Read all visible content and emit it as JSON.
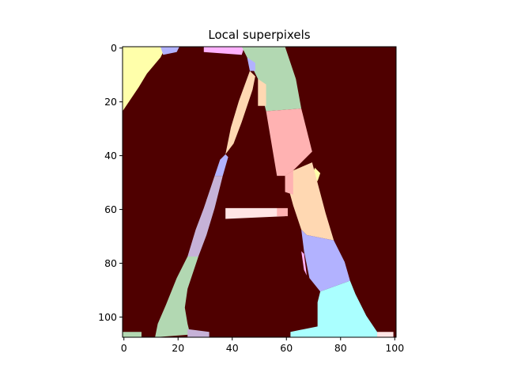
{
  "chart_data": {
    "type": "heatmap",
    "title": "Local superpixels",
    "xlabel": "",
    "ylabel": "",
    "xlim": [
      0,
      101
    ],
    "ylim": [
      108,
      0
    ],
    "x_ticks": [
      0,
      20,
      40,
      60,
      80,
      100
    ],
    "y_ticks": [
      0,
      20,
      40,
      60,
      80,
      100
    ],
    "image_size": {
      "cols": 101,
      "rows": 108
    },
    "grid": false,
    "background_color": "#4f0000",
    "segments": [
      {
        "color": "#ffffaa",
        "polygon": [
          [
            0,
            0
          ],
          [
            16,
            0
          ],
          [
            14,
            4
          ],
          [
            9,
            10
          ],
          [
            6,
            15
          ],
          [
            0,
            24
          ]
        ]
      },
      {
        "color": "#b2b2ff",
        "polygon": [
          [
            14,
            0
          ],
          [
            21,
            0
          ],
          [
            20,
            2
          ],
          [
            15,
            3
          ]
        ]
      },
      {
        "color": "#ffb2ff",
        "polygon": [
          [
            30,
            0
          ],
          [
            45,
            0
          ],
          [
            44,
            3
          ],
          [
            30,
            2
          ]
        ]
      },
      {
        "color": "#b2d8b2",
        "polygon": [
          [
            44,
            0
          ],
          [
            60,
            0
          ],
          [
            64,
            12
          ],
          [
            66,
            23
          ],
          [
            53,
            24
          ],
          [
            50,
            12
          ],
          [
            46,
            4
          ]
        ]
      },
      {
        "color": "#b2b2ff",
        "polygon": [
          [
            46,
            4
          ],
          [
            49,
            6
          ],
          [
            49,
            9
          ],
          [
            47,
            9
          ]
        ]
      },
      {
        "color": "#ffd8b2",
        "polygon": [
          [
            47,
            9
          ],
          [
            49,
            11
          ],
          [
            48,
            16
          ],
          [
            44,
            28
          ],
          [
            41,
            36
          ],
          [
            38,
            40
          ],
          [
            40,
            30
          ],
          [
            43,
            20
          ]
        ]
      },
      {
        "color": "#ffd8b2",
        "polygon": [
          [
            50,
            12
          ],
          [
            53,
            14
          ],
          [
            53,
            22
          ],
          [
            50,
            22
          ]
        ]
      },
      {
        "color": "#ffb2b2",
        "polygon": [
          [
            53,
            24
          ],
          [
            66,
            23
          ],
          [
            70,
            39
          ],
          [
            63,
            46
          ],
          [
            60,
            48
          ],
          [
            57,
            48
          ]
        ]
      },
      {
        "color": "#b2b2ff",
        "polygon": [
          [
            38,
            40
          ],
          [
            39,
            41
          ],
          [
            37,
            48
          ],
          [
            34,
            48
          ],
          [
            36,
            42
          ]
        ]
      },
      {
        "color": "#ffffaa",
        "polygon": [
          [
            71,
            45
          ],
          [
            73,
            47
          ],
          [
            72,
            50
          ],
          [
            70,
            48
          ]
        ]
      },
      {
        "color": "#aaffff",
        "polygon": [
          [
            33,
            52
          ],
          [
            34,
            53
          ],
          [
            33,
            57
          ],
          [
            31,
            57
          ]
        ]
      },
      {
        "color": "#ffd8b2",
        "polygon": [
          [
            60,
            48
          ],
          [
            63,
            46
          ],
          [
            70,
            43
          ],
          [
            75,
            62
          ],
          [
            78,
            72
          ],
          [
            68,
            70
          ],
          [
            66,
            68
          ],
          [
            63,
            59
          ]
        ]
      },
      {
        "color": "#ffb2b2",
        "polygon": [
          [
            60,
            48
          ],
          [
            63,
            46
          ],
          [
            63,
            55
          ],
          [
            60,
            54
          ]
        ]
      },
      {
        "color": "#c6b2d8",
        "polygon": [
          [
            34,
            48
          ],
          [
            37,
            48
          ],
          [
            34,
            60
          ],
          [
            31,
            70
          ],
          [
            28,
            78
          ],
          [
            24,
            78
          ],
          [
            27,
            68
          ],
          [
            30,
            60
          ]
        ]
      },
      {
        "color": "#ffe5e5",
        "polygon": [
          [
            38,
            60
          ],
          [
            57,
            60
          ],
          [
            60,
            63
          ],
          [
            38,
            64
          ]
        ]
      },
      {
        "color": "#ffb2b2",
        "polygon": [
          [
            57,
            60
          ],
          [
            61,
            60
          ],
          [
            61,
            63
          ],
          [
            57,
            63
          ]
        ]
      },
      {
        "color": "#b2b2ff",
        "polygon": [
          [
            66,
            68
          ],
          [
            68,
            70
          ],
          [
            78,
            72
          ],
          [
            82,
            80
          ],
          [
            84,
            87
          ],
          [
            73,
            91
          ],
          [
            69,
            86
          ],
          [
            67,
            76
          ]
        ]
      },
      {
        "color": "#ffb2ff",
        "polygon": [
          [
            66,
            76
          ],
          [
            67,
            77
          ],
          [
            68,
            85
          ],
          [
            67,
            83
          ]
        ]
      },
      {
        "color": "#b2d8b2",
        "polygon": [
          [
            24,
            78
          ],
          [
            28,
            78
          ],
          [
            24,
            90
          ],
          [
            23,
            97
          ],
          [
            24,
            103
          ],
          [
            25,
            107
          ],
          [
            12,
            108
          ],
          [
            13,
            103
          ],
          [
            16,
            96
          ],
          [
            20,
            86
          ]
        ]
      },
      {
        "color": "#aaffff",
        "polygon": [
          [
            73,
            91
          ],
          [
            84,
            87
          ],
          [
            86,
            92
          ],
          [
            90,
            100
          ],
          [
            94,
            106
          ],
          [
            94,
            108
          ],
          [
            62,
            108
          ],
          [
            62,
            106
          ],
          [
            72,
            104
          ],
          [
            72,
            95
          ]
        ]
      },
      {
        "color": "#c6b2d8",
        "polygon": [
          [
            24,
            105
          ],
          [
            32,
            106
          ],
          [
            32,
            108
          ],
          [
            24,
            108
          ]
        ]
      },
      {
        "color": "#b2d8b2",
        "polygon": [
          [
            0,
            106
          ],
          [
            7,
            106
          ],
          [
            7,
            108
          ],
          [
            0,
            108
          ]
        ]
      },
      {
        "color": "#ffe5e5",
        "polygon": [
          [
            94,
            106
          ],
          [
            100,
            106
          ],
          [
            100,
            108
          ],
          [
            94,
            108
          ]
        ]
      }
    ]
  }
}
